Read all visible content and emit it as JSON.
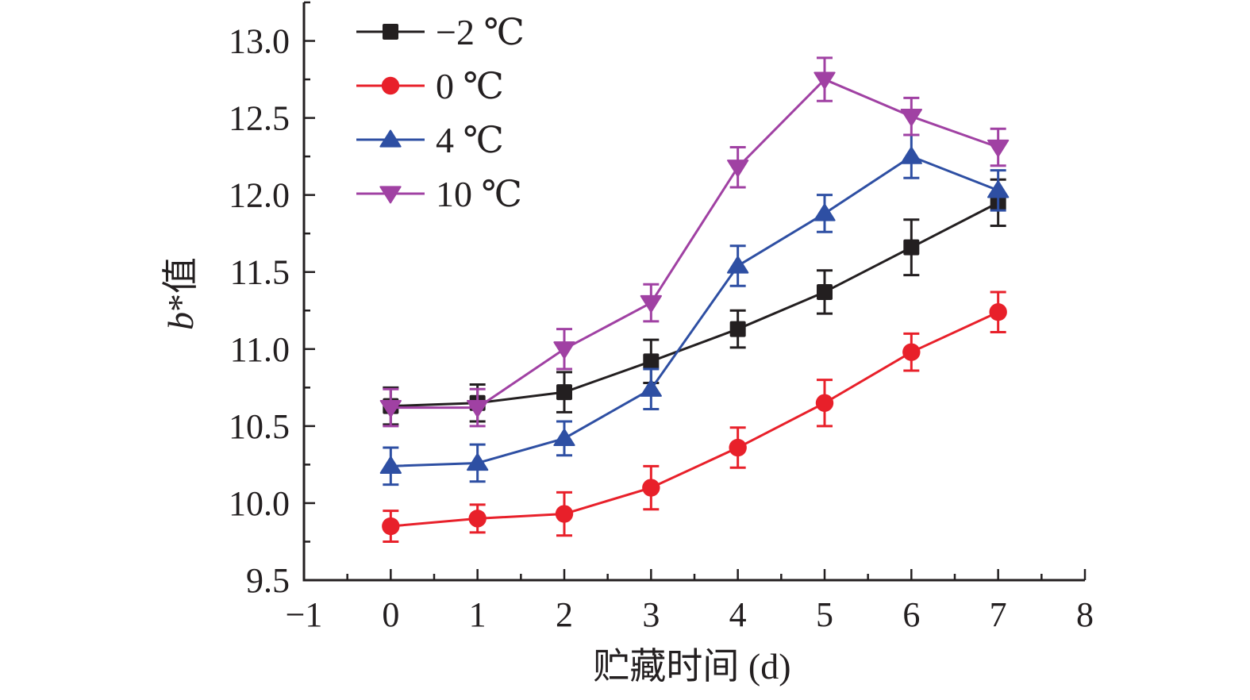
{
  "chart_data": {
    "type": "line",
    "title": "",
    "xlabel": "贮藏时间 (d)",
    "ylabel_italic": "b",
    "ylabel_rest": "*值",
    "xlim": [
      -1,
      8
    ],
    "ylim": [
      9.5,
      13.25
    ],
    "x_ticks": [
      -1,
      0,
      1,
      2,
      3,
      4,
      5,
      6,
      7,
      8
    ],
    "x_tick_labels": [
      "−1",
      "0",
      "1",
      "2",
      "3",
      "4",
      "5",
      "6",
      "7",
      "8"
    ],
    "y_ticks": [
      9.5,
      10.0,
      10.5,
      11.0,
      11.5,
      12.0,
      12.5,
      13.0
    ],
    "y_tick_labels": [
      "9.5",
      "10.0",
      "10.5",
      "11.0",
      "11.5",
      "12.0",
      "12.5",
      "13.0"
    ],
    "grid": false,
    "legend_position": "top-left",
    "x": [
      0,
      1,
      2,
      3,
      4,
      5,
      6,
      7
    ],
    "series": [
      {
        "name": "−2 ℃",
        "color": "#231f20",
        "marker": "square",
        "values": [
          10.63,
          10.65,
          10.72,
          10.92,
          11.13,
          11.37,
          11.66,
          11.95
        ],
        "errors": [
          0.12,
          0.12,
          0.13,
          0.14,
          0.12,
          0.14,
          0.18,
          0.15
        ]
      },
      {
        "name": "0 ℃",
        "color": "#e8202a",
        "marker": "circle",
        "values": [
          9.85,
          9.9,
          9.93,
          10.1,
          10.36,
          10.65,
          10.98,
          11.24
        ],
        "errors": [
          0.1,
          0.09,
          0.14,
          0.14,
          0.13,
          0.15,
          0.12,
          0.13
        ]
      },
      {
        "name": "4 ℃",
        "color": "#2e4fa3",
        "marker": "triangle-up",
        "values": [
          10.24,
          10.26,
          10.42,
          10.74,
          11.54,
          11.88,
          12.25,
          12.03
        ],
        "errors": [
          0.12,
          0.12,
          0.11,
          0.13,
          0.13,
          0.12,
          0.14,
          0.13
        ]
      },
      {
        "name": "10 ℃",
        "color": "#a041a3",
        "marker": "triangle-down",
        "values": [
          10.62,
          10.62,
          11.0,
          11.3,
          12.18,
          12.75,
          12.51,
          12.31
        ],
        "errors": [
          0.12,
          0.12,
          0.13,
          0.12,
          0.13,
          0.14,
          0.12,
          0.12
        ]
      }
    ]
  }
}
